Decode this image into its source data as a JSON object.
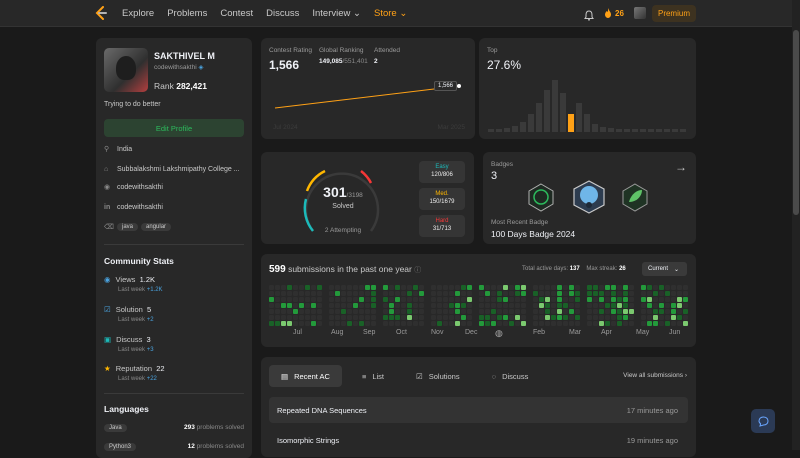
{
  "nav": {
    "items": [
      "Explore",
      "Problems",
      "Contest",
      "Discuss",
      "Interview ⌄",
      "Store ⌄"
    ],
    "streak": "26",
    "premium": "Premium"
  },
  "profile": {
    "name": "SAKTHIVEL M",
    "handle": "codewithsakthi",
    "rank_label": "Rank",
    "rank": "282,421",
    "bio": "Trying to do better",
    "edit": "Edit Profile",
    "location": "India",
    "college": "Subbalakshmi Lakshmipathy College ...",
    "github": "codewithsakthi",
    "linkedin": "codewithsakthi",
    "skills": [
      "java",
      "angular"
    ]
  },
  "community": {
    "title": "Community Stats",
    "stats": [
      {
        "label": "Views",
        "value": "1.2K",
        "sub": "Last week",
        "delta": "+1.2K"
      },
      {
        "label": "Solution",
        "value": "5",
        "sub": "Last week",
        "delta": "+2"
      },
      {
        "label": "Discuss",
        "value": "3",
        "sub": "Last week",
        "delta": "+3"
      },
      {
        "label": "Reputation",
        "value": "22",
        "sub": "Last week",
        "delta": "+22"
      }
    ]
  },
  "languages": {
    "title": "Languages",
    "items": [
      {
        "name": "Java",
        "count": "293",
        "suffix": "problems solved"
      },
      {
        "name": "Python3",
        "count": "12",
        "suffix": "problems solved"
      }
    ]
  },
  "contest": {
    "rating_label": "Contest Rating",
    "rating": "1,566",
    "global_label": "Global Ranking",
    "global": "149,085",
    "global_total": "/551,401",
    "attended_label": "Attended",
    "attended": "2",
    "tooltip": "1,566",
    "start": "Jul 2024",
    "end": "Mar 2025",
    "top_label": "Top",
    "top": "27.6%",
    "histogram": [
      0.05,
      0.05,
      0.08,
      0.12,
      0.2,
      0.35,
      0.55,
      0.8,
      1.0,
      0.75,
      0.35,
      0.55,
      0.35,
      0.15,
      0.1,
      0.08,
      0.06,
      0.05,
      0.05,
      0.05,
      0.05,
      0.05,
      0.05,
      0.05,
      0.05
    ],
    "highlight_index": 10,
    "rating_series": [
      0.2,
      0.55
    ]
  },
  "solved": {
    "solved": "301",
    "total": "/3198",
    "label": "Solved",
    "attempting": "2 Attempting",
    "easy": {
      "label": "Easy",
      "value": "120/806",
      "color": "#1cbaba"
    },
    "medium": {
      "label": "Med.",
      "value": "150/1679",
      "color": "#ffb700"
    },
    "hard": {
      "label": "Hard",
      "value": "31/713",
      "color": "#f63737"
    },
    "progress": {
      "easy": 0.149,
      "medium": 0.089,
      "hard": 0.043
    }
  },
  "badges": {
    "label": "Badges",
    "count": "3",
    "recent_label": "Most Recent Badge",
    "recent": "100 Days Badge 2024",
    "icons": [
      "badge-50-days-icon",
      "badge-annual-icon",
      "badge-100-days-icon"
    ]
  },
  "heatmap": {
    "count": "599",
    "text": "submissions in the past one year",
    "active_label": "Total active days:",
    "active": "137",
    "streak_label": "Max streak:",
    "streak": "26",
    "range": "Current",
    "months": [
      "Jul",
      "Aug",
      "Sep",
      "Oct",
      "Nov",
      "Dec",
      "Jan",
      "Feb",
      "Mar",
      "Apr",
      "May",
      "Jun"
    ]
  },
  "recent": {
    "tabs": [
      "Recent AC",
      "List",
      "Solutions",
      "Discuss"
    ],
    "view_all": "View all submissions",
    "rows": [
      {
        "title": "Repeated DNA Sequences",
        "time": "17 minutes ago"
      },
      {
        "title": "Isomorphic Strings",
        "time": "19 minutes ago"
      }
    ]
  },
  "colors": {
    "accent": "#ffa116",
    "green": "#2cbb5d",
    "easy": "#1cbaba",
    "medium": "#ffb700",
    "hard": "#f63737"
  }
}
